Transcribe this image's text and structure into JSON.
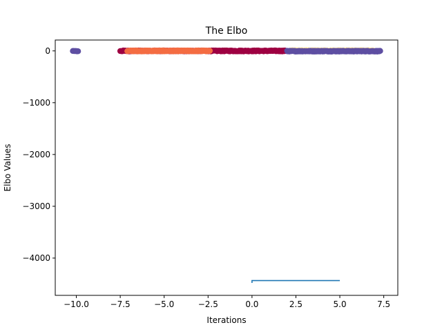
{
  "chart_data": {
    "type": "scatter",
    "title": "The Elbo",
    "xlabel": "Iterations",
    "ylabel": "Elbo Values",
    "xlim": [
      -11.2,
      8.3
    ],
    "ylim": [
      -4720,
      210
    ],
    "grid": false,
    "xticks": [
      -10.0,
      -7.5,
      -5.0,
      -2.5,
      0.0,
      2.5,
      5.0,
      7.5
    ],
    "xtick_labels": [
      "−10.0",
      "−7.5",
      "−5.0",
      "−2.5",
      "0.0",
      "2.5",
      "5.0",
      "7.5"
    ],
    "yticks": [
      0,
      -1000,
      -2000,
      -3000,
      -4000
    ],
    "ytick_labels": [
      "0",
      "−1000",
      "−2000",
      "−3000",
      "−4000"
    ],
    "scatter_groups": [
      {
        "color": "#fee08b",
        "x_range": [
          2.2,
          6.9
        ],
        "y": 5,
        "y_jitter": 8,
        "count": 140
      },
      {
        "color": "#9e0142",
        "x_range": [
          -7.5,
          1.9
        ],
        "y": 0,
        "y_jitter": 10,
        "count": 320
      },
      {
        "color": "#f46d43",
        "x_range": [
          -7.1,
          -2.4
        ],
        "y": 0,
        "y_jitter": 10,
        "count": 220
      },
      {
        "color": "#5e4fa2",
        "x_range": [
          2.0,
          7.3
        ],
        "y": -5,
        "y_jitter": 8,
        "count": 220
      },
      {
        "color": "#5e4fa2",
        "x_range": [
          -10.2,
          -9.9
        ],
        "y": -5,
        "y_jitter": 4,
        "count": 10
      }
    ],
    "line_series": {
      "color": "#1f77b4",
      "x": [
        0,
        0,
        5.0
      ],
      "y": [
        -4480,
        -4435,
        -4435
      ]
    }
  }
}
